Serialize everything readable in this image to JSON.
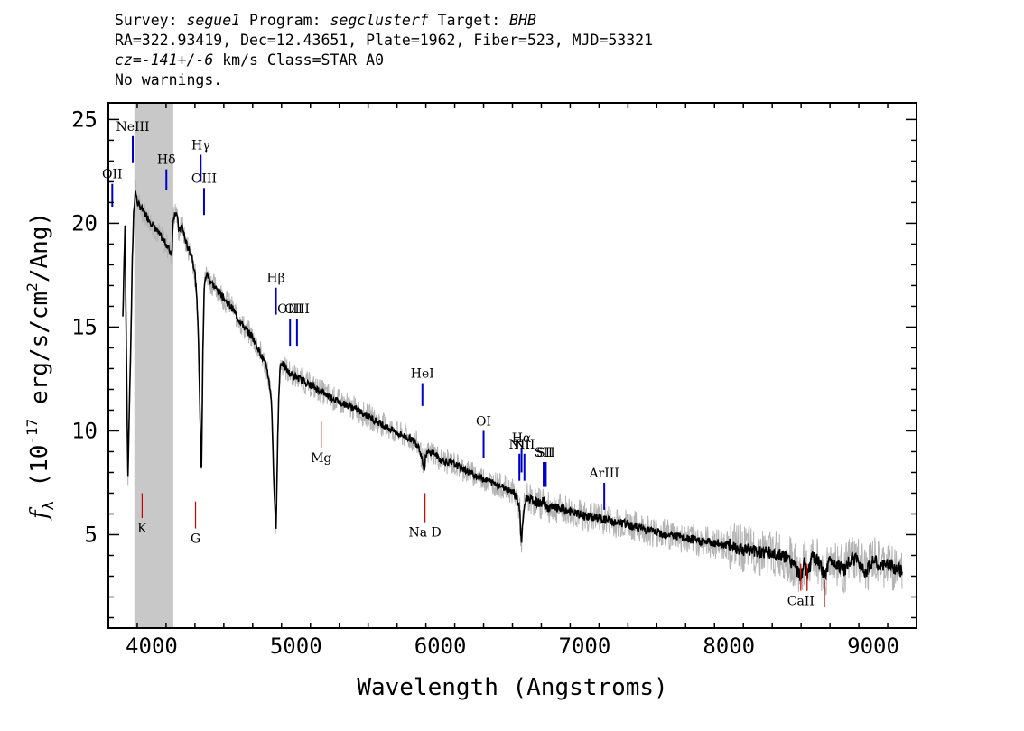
{
  "header": {
    "survey_label": "Survey:",
    "survey": "segue1",
    "program_label": "Program:",
    "program": "segclusterf",
    "target_label": "Target:",
    "target": "BHB",
    "coords_line": "RA=322.93419, Dec=12.43651, Plate=1962, Fiber=523, MJD=53321",
    "cz_label": "cz=",
    "cz_value": "-141+/-6",
    "cz_units": "km/s Class=STAR A0",
    "warnings": "No warnings."
  },
  "chart_data": {
    "type": "line",
    "xlabel": "Wavelength (Angstroms)",
    "ylabel": "f_λ (10^-17 erg/s/cm^2/Ang)",
    "xlim": [
      3700,
      9300
    ],
    "ylim": [
      0.5,
      25.8
    ],
    "x_ticks": [
      4000,
      5000,
      6000,
      7000,
      8000,
      9000
    ],
    "y_ticks": [
      5,
      10,
      15,
      20,
      25
    ],
    "masked_region": [
      3880,
      4150
    ],
    "series": [
      {
        "color": "#000000",
        "x": [
          3800,
          3815,
          3825,
          3835,
          3845,
          3855,
          3865,
          3875,
          3888,
          3900,
          4000,
          4100,
          4140,
          4150,
          4170,
          4190,
          4210,
          4240,
          4260,
          4280,
          4300,
          4320,
          4335,
          4345,
          4355,
          4365,
          4380,
          4400,
          4440,
          4480,
          4520,
          4560,
          4600,
          4650,
          4700,
          4750,
          4800,
          4830,
          4845,
          4855,
          4862,
          4870,
          4880,
          4890,
          4900,
          4920,
          4950,
          5000,
          5100,
          5200,
          5300,
          5400,
          5500,
          5600,
          5700,
          5800,
          5850,
          5880,
          5889,
          5900,
          5950,
          6000,
          6100,
          6200,
          6300,
          6400,
          6500,
          6530,
          6550,
          6556,
          6563,
          6570,
          6580,
          6600,
          6650,
          6700,
          6720,
          6730,
          6800,
          6900,
          7000,
          7100,
          7200,
          7300,
          7400,
          7500,
          7600,
          7700,
          7800,
          7900,
          8000,
          8100,
          8200,
          8300,
          8400,
          8450,
          8498,
          8520,
          8542,
          8580,
          8620,
          8662,
          8700,
          8750,
          8800,
          8850,
          8900,
          8950,
          9000,
          9050,
          9100,
          9150,
          9200
        ],
        "values": [
          15.5,
          19.8,
          14.0,
          7.5,
          11.0,
          14.0,
          18.0,
          20.5,
          21.6,
          21.0,
          20.0,
          19.0,
          18.5,
          20.3,
          20.6,
          19.6,
          19.9,
          19.0,
          18.7,
          18.4,
          17.6,
          15.5,
          11.0,
          7.5,
          14.0,
          17.0,
          17.6,
          17.3,
          16.9,
          16.6,
          16.2,
          15.9,
          15.4,
          14.9,
          14.5,
          13.8,
          13.0,
          11.5,
          8.0,
          5.9,
          5.4,
          8.5,
          11.5,
          13.1,
          13.3,
          13.1,
          12.8,
          12.6,
          12.2,
          11.8,
          11.4,
          11.1,
          10.7,
          10.3,
          9.9,
          9.6,
          9.3,
          8.5,
          8.0,
          8.9,
          9.0,
          8.6,
          8.4,
          8.0,
          7.7,
          7.4,
          7.1,
          6.8,
          6.2,
          5.2,
          4.7,
          5.3,
          6.3,
          6.8,
          6.6,
          6.5,
          6.7,
          6.3,
          6.3,
          6.1,
          5.9,
          5.8,
          5.6,
          5.5,
          5.3,
          5.1,
          5.0,
          4.8,
          4.7,
          4.6,
          4.5,
          4.3,
          4.2,
          4.1,
          3.9,
          3.6,
          2.9,
          3.7,
          3.1,
          3.9,
          3.7,
          3.0,
          3.8,
          3.6,
          3.3,
          3.9,
          3.7,
          3.2,
          3.8,
          3.4,
          3.6,
          3.4,
          3.2
        ]
      }
    ],
    "emission_lines": [
      {
        "label": "OII",
        "x": 3727,
        "y0": 20.8,
        "y1": 21.9,
        "color": "#0000cc"
      },
      {
        "label": "NeIII",
        "x": 3869,
        "y0": 22.9,
        "y1": 24.2,
        "color": "#0000cc"
      },
      {
        "label": "Hδ",
        "x": 4102,
        "y0": 21.6,
        "y1": 22.6,
        "color": "#0000cc"
      },
      {
        "label": "Hγ",
        "x": 4340,
        "y0": 22.0,
        "y1": 23.3,
        "color": "#0000cc"
      },
      {
        "label": "OIII",
        "x": 4363,
        "y0": 20.4,
        "y1": 21.7,
        "color": "#0000cc"
      },
      {
        "label": "Hβ",
        "x": 4861,
        "y0": 15.6,
        "y1": 16.9,
        "color": "#0000cc"
      },
      {
        "label": "OIII",
        "x": 4959,
        "y0": 14.1,
        "y1": 15.4,
        "color": "#0000cc"
      },
      {
        "label": "OIII",
        "x": 5007,
        "y0": 14.1,
        "y1": 15.4,
        "color": "#0000cc"
      },
      {
        "label": "HeI",
        "x": 5876,
        "y0": 11.2,
        "y1": 12.3,
        "color": "#0000cc"
      },
      {
        "label": "OI",
        "x": 6300,
        "y0": 8.7,
        "y1": 10.0,
        "color": "#0000cc"
      },
      {
        "label": "NII",
        "x": 6548,
        "y0": 7.6,
        "y1": 8.9,
        "color": "#0000cc"
      },
      {
        "label": "Hα",
        "x": 6563,
        "y0": 8.0,
        "y1": 9.2,
        "color": "#0000cc"
      },
      {
        "label": "NII",
        "x": 6583,
        "y0": 7.6,
        "y1": 8.9,
        "color": "#0000cc"
      },
      {
        "label": "SII",
        "x": 6716,
        "y0": 7.3,
        "y1": 8.5,
        "color": "#0000cc"
      },
      {
        "label": "SII",
        "x": 6731,
        "y0": 7.3,
        "y1": 8.5,
        "color": "#0000cc"
      },
      {
        "label": "ArIII",
        "x": 7136,
        "y0": 6.2,
        "y1": 7.5,
        "color": "#0000cc"
      }
    ],
    "absorption_lines": [
      {
        "label": "K",
        "x": 3934,
        "y0": 5.8,
        "y1": 7.0,
        "color": "#cc0000"
      },
      {
        "label": "G",
        "x": 4304,
        "y0": 5.3,
        "y1": 6.6,
        "color": "#cc0000"
      },
      {
        "label": "Mg",
        "x": 5175,
        "y0": 9.2,
        "y1": 10.5,
        "color": "#cc0000"
      },
      {
        "label": "Na D",
        "x": 5894,
        "y0": 5.6,
        "y1": 7.0,
        "color": "#cc0000"
      },
      {
        "label": "CaII",
        "x": 8498,
        "y0": 2.3,
        "y1": 3.6,
        "color": "#cc0000"
      },
      {
        "label": "",
        "x": 8542,
        "y0": 2.3,
        "y1": 3.6,
        "color": "#cc0000"
      },
      {
        "label": "",
        "x": 8662,
        "y0": 1.5,
        "y1": 2.8,
        "color": "#cc0000"
      }
    ]
  }
}
